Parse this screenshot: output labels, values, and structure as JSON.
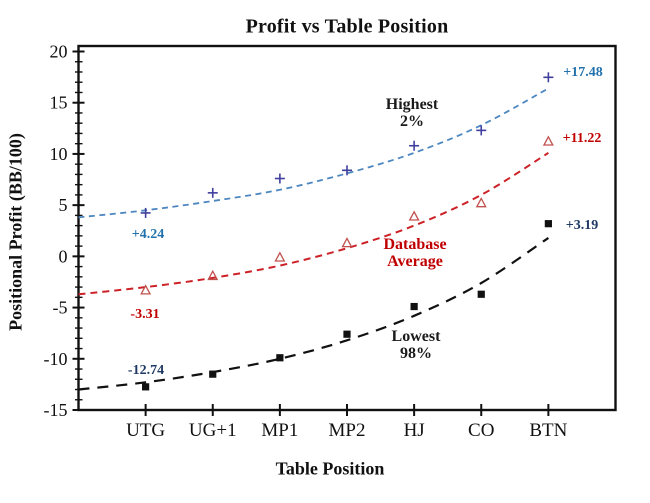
{
  "title": "Profit vs Table Position",
  "axes": {
    "x_label": "Table Position",
    "y_label": "Positional Profit (BB/100)",
    "y_tick_labels": [
      "20",
      "15",
      "10",
      "5",
      "0",
      "-5",
      "-10",
      "-15"
    ],
    "y_minor_step": 1
  },
  "annotations": {
    "highest": {
      "line1": "Highest",
      "line2": "2%"
    },
    "database": {
      "line1": "Database",
      "line2": "Average"
    },
    "lowest": {
      "line1": "Lowest",
      "line2": "98%"
    }
  },
  "value_labels": {
    "blue_first": "+4.24",
    "blue_last": "+17.48",
    "red_first": "-3.31",
    "red_last": "+11.22",
    "black_first": "-12.74",
    "black_last": "+3.19"
  },
  "colors": {
    "frame": "#111111",
    "blue_line": "#4d87c0",
    "blue_marker": "#3f3f9e",
    "blue_label": "#2272ad",
    "red_line": "#cc2127",
    "red_marker": "#c0504d",
    "red_label": "#c00000",
    "black_line": "#111111",
    "black_marker": "#111111",
    "navy_label": "#1f3864",
    "anno_black": "#1a1a1a"
  },
  "chart_data": {
    "type": "scatter",
    "title": "Profit vs Table Position",
    "xlabel": "Table Position",
    "ylabel": "Positional Profit (BB/100)",
    "ylim": [
      -15,
      20
    ],
    "y_major_ticks": [
      20,
      15,
      10,
      5,
      0,
      -5,
      -10,
      -15
    ],
    "grid": false,
    "legend": "inline text annotations on curves",
    "categories": [
      "UTG",
      "UG+1",
      "MP1",
      "MP2",
      "HJ",
      "CO",
      "BTN"
    ],
    "series": [
      {
        "name": "Highest 2%",
        "marker": "plus",
        "line_style": "dashed",
        "values": [
          4.24,
          6.2,
          7.6,
          8.4,
          10.8,
          12.3,
          17.48
        ],
        "endpoint_labels": {
          "first": "+4.24",
          "last": "+17.48"
        },
        "trend_x": [
          -1,
          0,
          1,
          2,
          3,
          4,
          5,
          6
        ],
        "trend": [
          3.8,
          4.5,
          5.4,
          6.5,
          8.1,
          10.1,
          12.8,
          16.4
        ]
      },
      {
        "name": "Database Average",
        "marker": "triangle-open",
        "line_style": "dashed",
        "values": [
          -3.31,
          -1.9,
          -0.1,
          1.3,
          3.9,
          5.2,
          11.22
        ],
        "endpoint_labels": {
          "first": "-3.31",
          "last": "+11.22"
        },
        "trend_x": [
          -1,
          0,
          1,
          2,
          3,
          4,
          5,
          6
        ],
        "trend": [
          -3.7,
          -3.0,
          -2.1,
          -0.9,
          0.8,
          3.0,
          6.0,
          10.1
        ]
      },
      {
        "name": "Lowest 98%",
        "marker": "square-filled",
        "line_style": "dashed",
        "values": [
          -12.74,
          -11.5,
          -9.9,
          -7.6,
          -4.9,
          -3.7,
          3.19
        ],
        "endpoint_labels": {
          "first": "-12.74",
          "last": "+3.19"
        },
        "trend_x": [
          -1,
          0,
          1,
          2,
          3,
          4,
          5,
          6
        ],
        "trend": [
          -13.0,
          -12.3,
          -11.3,
          -10.0,
          -8.2,
          -5.8,
          -2.6,
          1.8
        ]
      }
    ],
    "note": "trend arrays are the dashed fitted curves; trend_x of -1 is the left axis edge (one category-width left of UTG)"
  }
}
